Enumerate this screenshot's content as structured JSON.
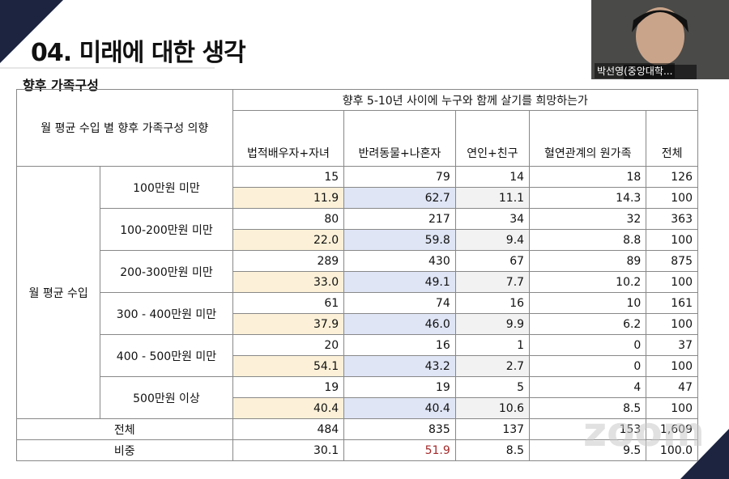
{
  "slide": {
    "title": "04. 미래에 대한 생각",
    "subtitle": "향후 가족구성"
  },
  "table": {
    "corner": "월 평균 수입 별 향후 가족구성 의향",
    "group_header": "향후 5-10년 사이에 누구와 함께 살기를 희망하는가",
    "columns": [
      "법적배우자+자녀",
      "반려동물+나혼자",
      "연인+친구",
      "혈연관계의 원가족",
      "전체"
    ],
    "row_group": "월 평균 수입",
    "rows": [
      {
        "label": "100만원 미만",
        "counts": [
          "15",
          "79",
          "14",
          "18",
          "126"
        ],
        "percents": [
          "11.9",
          "62.7",
          "11.1",
          "14.3",
          "100"
        ]
      },
      {
        "label": "100-200만원 미만",
        "counts": [
          "80",
          "217",
          "34",
          "32",
          "363"
        ],
        "percents": [
          "22.0",
          "59.8",
          "9.4",
          "8.8",
          "100"
        ]
      },
      {
        "label": "200-300만원 미만",
        "counts": [
          "289",
          "430",
          "67",
          "89",
          "875"
        ],
        "percents": [
          "33.0",
          "49.1",
          "7.7",
          "10.2",
          "100"
        ]
      },
      {
        "label": "300 - 400만원 미만",
        "counts": [
          "61",
          "74",
          "16",
          "10",
          "161"
        ],
        "percents": [
          "37.9",
          "46.0",
          "9.9",
          "6.2",
          "100"
        ]
      },
      {
        "label": "400 - 500만원 미만",
        "counts": [
          "20",
          "16",
          "1",
          "0",
          "37"
        ],
        "percents": [
          "54.1",
          "43.2",
          "2.7",
          "0",
          "100"
        ]
      },
      {
        "label": "500만원 이상",
        "counts": [
          "19",
          "19",
          "5",
          "4",
          "47"
        ],
        "percents": [
          "40.4",
          "40.4",
          "10.6",
          "8.5",
          "100"
        ]
      }
    ],
    "total": {
      "label": "전체",
      "values": [
        "484",
        "835",
        "137",
        "153",
        "1,609"
      ]
    },
    "share": {
      "label": "비중",
      "values": [
        "30.1",
        "51.9",
        "8.5",
        "9.5",
        "100.0"
      ]
    }
  },
  "webcam": {
    "name": "박선영(중앙대학..."
  },
  "watermark": "zoom"
}
